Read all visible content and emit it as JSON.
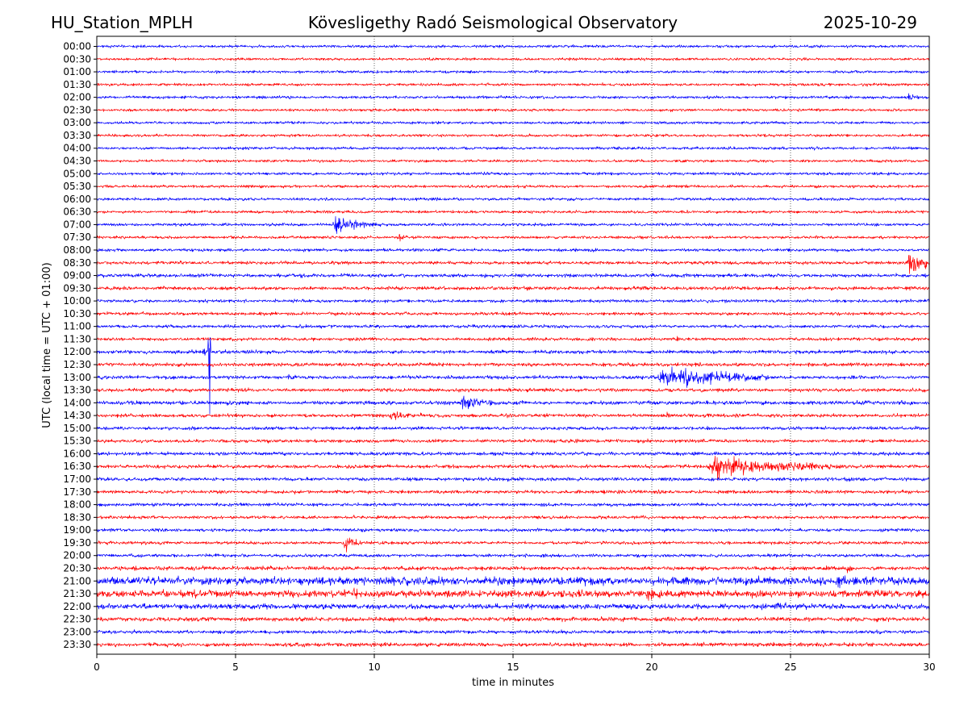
{
  "chart_data": {
    "type": "line",
    "title_left": "HU_Station_MPLH",
    "title_center": "Kövesligethy Radó Seismological Observatory",
    "title_right": "2025-10-29",
    "xlabel": "time in minutes",
    "ylabel": "UTC (local time = UTC + 01:00)",
    "xlim": [
      0,
      30
    ],
    "xticks": [
      0,
      5,
      10,
      15,
      20,
      25,
      30
    ],
    "grid": "vertical-dotted",
    "series_colors": [
      "#0000ff",
      "#ff0000"
    ],
    "rows": [
      "00:00",
      "00:30",
      "01:00",
      "01:30",
      "02:00",
      "02:30",
      "03:00",
      "03:30",
      "04:00",
      "04:30",
      "05:00",
      "05:30",
      "06:00",
      "06:30",
      "07:00",
      "07:30",
      "08:00",
      "08:30",
      "09:00",
      "09:30",
      "10:00",
      "10:30",
      "11:00",
      "11:30",
      "12:00",
      "12:30",
      "13:00",
      "13:30",
      "14:00",
      "14:30",
      "15:00",
      "15:30",
      "16:00",
      "16:30",
      "17:00",
      "17:30",
      "18:00",
      "18:30",
      "19:00",
      "19:30",
      "20:00",
      "20:30",
      "21:00",
      "21:30",
      "22:00",
      "22:30",
      "23:00",
      "23:30"
    ],
    "noise_amplitude": [
      1.5,
      1.5,
      1.5,
      1.5,
      1.6,
      1.5,
      1.5,
      1.5,
      1.6,
      1.5,
      1.6,
      1.6,
      1.6,
      1.6,
      1.6,
      1.6,
      1.7,
      1.8,
      2.0,
      2.0,
      1.8,
      1.8,
      1.8,
      1.8,
      2.0,
      2.0,
      2.0,
      2.0,
      2.2,
      2.0,
      1.9,
      1.9,
      2.0,
      2.0,
      2.0,
      1.9,
      1.8,
      1.8,
      1.8,
      1.8,
      1.8,
      2.2,
      4.5,
      4.0,
      3.0,
      2.4,
      2.0,
      2.2
    ],
    "events": [
      {
        "row": "02:00",
        "start_min": 29.2,
        "duration_min": 0.8,
        "amplitude": 5,
        "decay": 2,
        "type": "burst"
      },
      {
        "row": "07:00",
        "start_min": 8.5,
        "duration_min": 1.8,
        "amplitude": 14,
        "decay": 1.5,
        "type": "quake"
      },
      {
        "row": "07:30",
        "start_min": 10.8,
        "duration_min": 0.8,
        "amplitude": 4,
        "decay": 2,
        "type": "burst"
      },
      {
        "row": "08:30",
        "start_min": 29.2,
        "duration_min": 0.8,
        "amplitude": 16,
        "decay": 0.8,
        "type": "burst"
      },
      {
        "row": "11:30",
        "start_min": 20.8,
        "duration_min": 0.6,
        "amplitude": 4,
        "decay": 2,
        "type": "burst"
      },
      {
        "row": "12:00",
        "start_min": 3.8,
        "duration_min": 0.5,
        "amplitude": 14,
        "decay": 3,
        "type": "quake"
      },
      {
        "row": "12:00",
        "start_min": 4.05,
        "duration_min": 0.1,
        "amplitude": 55,
        "decay": 5,
        "type": "spike"
      },
      {
        "row": "13:00",
        "start_min": 6.8,
        "duration_min": 0.5,
        "amplitude": 7,
        "decay": 3,
        "type": "quake"
      },
      {
        "row": "13:00",
        "start_min": 20.2,
        "duration_min": 4.0,
        "amplitude": 16,
        "decay": 2.0,
        "type": "long"
      },
      {
        "row": "14:00",
        "start_min": 13.1,
        "duration_min": 2.2,
        "amplitude": 12,
        "decay": 2.5,
        "type": "quake"
      },
      {
        "row": "14:30",
        "start_min": 10.5,
        "duration_min": 1.2,
        "amplitude": 4,
        "decay": 1,
        "type": "burst"
      },
      {
        "row": "14:30",
        "start_min": 20.5,
        "duration_min": 0.5,
        "amplitude": 3,
        "decay": 2,
        "type": "burst"
      },
      {
        "row": "16:30",
        "start_min": 22.0,
        "duration_min": 5.0,
        "amplitude": 15,
        "decay": 2.2,
        "type": "long"
      },
      {
        "row": "19:30",
        "start_min": 8.9,
        "duration_min": 0.8,
        "amplitude": 18,
        "decay": 2.0,
        "type": "quake"
      },
      {
        "row": "20:30",
        "start_min": 27.0,
        "duration_min": 0.5,
        "amplitude": 6,
        "decay": 2,
        "type": "burst"
      },
      {
        "row": "21:00",
        "start_min": 26.6,
        "duration_min": 0.8,
        "amplitude": 8,
        "decay": 2,
        "type": "burst"
      },
      {
        "row": "21:00",
        "start_min": 21.1,
        "duration_min": 0.4,
        "amplitude": 9,
        "decay": 2,
        "type": "burst"
      },
      {
        "row": "21:30",
        "start_min": 9.2,
        "duration_min": 0.4,
        "amplitude": 10,
        "decay": 2,
        "type": "burst"
      },
      {
        "row": "21:30",
        "start_min": 19.8,
        "duration_min": 0.8,
        "amplitude": 9,
        "decay": 2,
        "type": "burst"
      },
      {
        "row": "22:00",
        "start_min": 24.5,
        "duration_min": 0.5,
        "amplitude": 6,
        "decay": 2,
        "type": "burst"
      }
    ]
  }
}
